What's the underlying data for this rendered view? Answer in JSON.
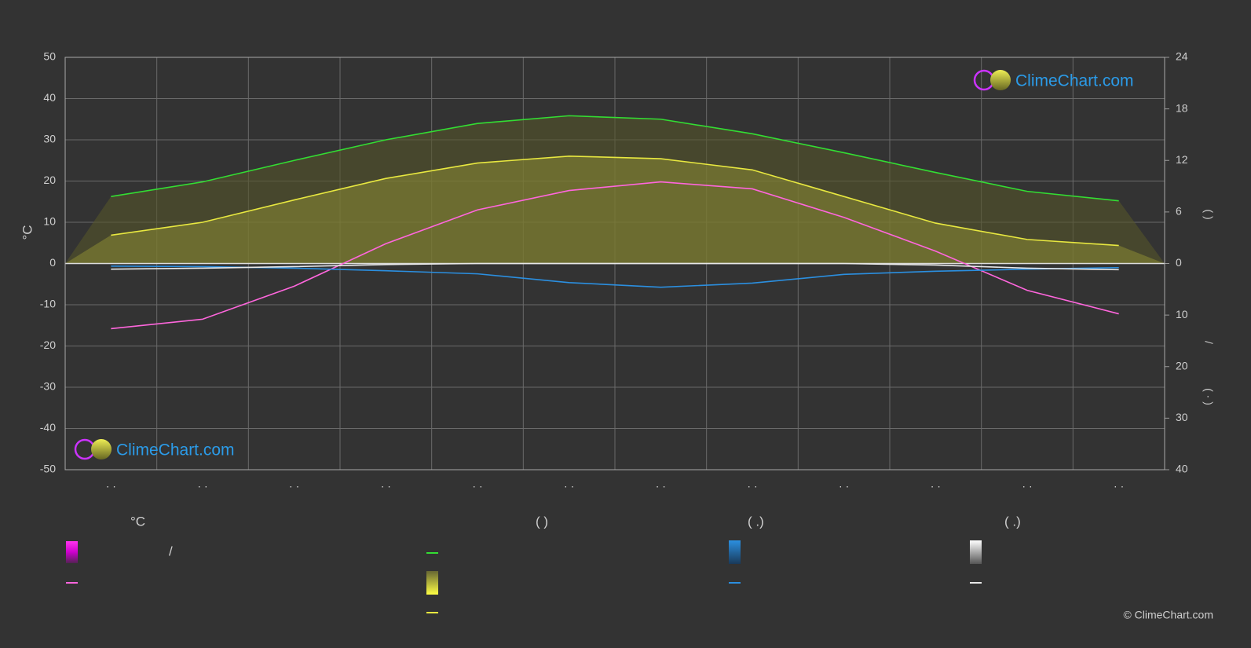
{
  "chart_data": {
    "type": "line",
    "y_label": "°C",
    "y2_label_top": "(   )",
    "y2_label_mid": "/",
    "y2_label_bottom": "( · )",
    "categories": [
      "· ·",
      "· ·",
      "· ·",
      "· ·",
      "· ·",
      "· ·",
      "· ·",
      "· ·",
      "· ·",
      "· ·",
      "· ·",
      "· ·"
    ],
    "ylim": [
      -50,
      50
    ],
    "yticks": [
      -50,
      -40,
      -30,
      -20,
      -10,
      0,
      10,
      20,
      30,
      40,
      50
    ],
    "y2lim": [
      0,
      24
    ],
    "y2ticks": [
      0,
      6,
      12,
      18,
      24
    ],
    "y3lim": [
      0,
      40
    ],
    "y3ticks": [
      10,
      20,
      30,
      40
    ],
    "grid": true,
    "series": [
      {
        "color": "#33dd33",
        "axis": "y2",
        "values": [
          7.8,
          9.5,
          12.0,
          14.4,
          16.3,
          17.2,
          16.8,
          15.1,
          12.9,
          10.6,
          8.4,
          7.3
        ]
      },
      {
        "color": "#e8e840",
        "axis": "y2",
        "values": [
          3.3,
          4.8,
          7.4,
          9.9,
          11.7,
          12.5,
          12.2,
          10.9,
          7.8,
          4.7,
          2.8,
          2.1
        ]
      },
      {
        "color": "#ff66dd",
        "axis": "y",
        "values": [
          -15.8,
          -13.5,
          -5.5,
          4.8,
          13.0,
          17.7,
          19.8,
          18.1,
          11.2,
          3.0,
          -6.5,
          -12.2
        ]
      },
      {
        "color": "#2b8fe0",
        "axis": "y3",
        "values": [
          0.5,
          0.6,
          0.9,
          1.4,
          2.0,
          3.7,
          4.6,
          3.8,
          2.1,
          1.5,
          1.1,
          0.8
        ]
      },
      {
        "color": "#e8e8e8",
        "axis": "y3",
        "values": [
          1.1,
          0.9,
          0.6,
          0.2,
          0,
          0,
          0,
          0,
          0,
          0.3,
          0.9,
          1.2
        ]
      }
    ],
    "legend": {
      "temp_title": "°C",
      "temp_entry": "/",
      "sun_title": "(          )",
      "rain_title": "(   .)",
      "snow_title": "(   .)"
    },
    "logo_text": "ClimeChart.com",
    "copyright": "© ClimeChart.com"
  }
}
